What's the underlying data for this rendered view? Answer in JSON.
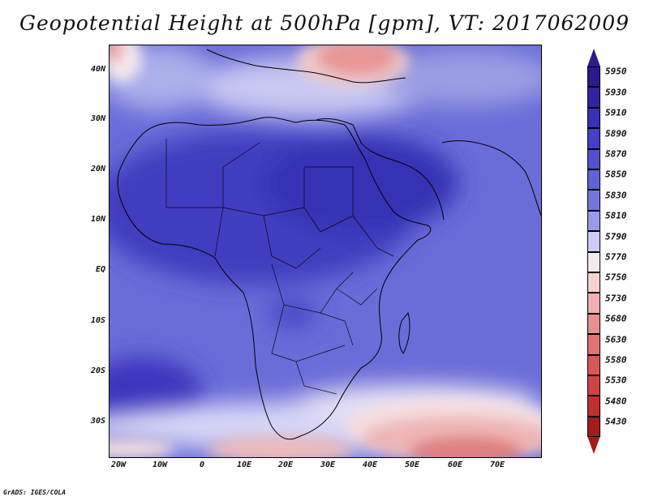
{
  "title": "Geopotential Height at 500hPa [gpm], VT: 2017062009",
  "credit": "GrADS: IGES/COLA",
  "map": {
    "lat_labels": [
      "40N",
      "30N",
      "20N",
      "10N",
      "EQ",
      "10S",
      "20S",
      "30S"
    ],
    "lon_labels": [
      "20W",
      "10W",
      "0",
      "10E",
      "20E",
      "30E",
      "40E",
      "50E",
      "60E",
      "70E"
    ],
    "lat_values": [
      40,
      30,
      20,
      10,
      0,
      -10,
      -20,
      -30
    ],
    "lon_values": [
      -20,
      -10,
      0,
      10,
      20,
      30,
      40,
      50,
      60,
      70
    ]
  },
  "colorbar": {
    "levels": [
      {
        "label": "5950",
        "color": "#2a1a8c"
      },
      {
        "label": "5930",
        "color": "#3022a2"
      },
      {
        "label": "5910",
        "color": "#3a30b8"
      },
      {
        "label": "5890",
        "color": "#4440c6"
      },
      {
        "label": "5870",
        "color": "#5150cf"
      },
      {
        "label": "5850",
        "color": "#6062d6"
      },
      {
        "label": "5830",
        "color": "#7576dc"
      },
      {
        "label": "5810",
        "color": "#9a9ae8"
      },
      {
        "label": "5790",
        "color": "#ccccf6"
      },
      {
        "label": "5770",
        "color": "#f3eaf0"
      },
      {
        "label": "5750",
        "color": "#f6d2d2"
      },
      {
        "label": "5730",
        "color": "#eeb0b0"
      },
      {
        "label": "5680",
        "color": "#e69090"
      },
      {
        "label": "5630",
        "color": "#e07272"
      },
      {
        "label": "5580",
        "color": "#d85858"
      },
      {
        "label": "5530",
        "color": "#d04444"
      },
      {
        "label": "5480",
        "color": "#c03030"
      },
      {
        "label": "5430",
        "color": "#a31b1b"
      }
    ]
  }
}
